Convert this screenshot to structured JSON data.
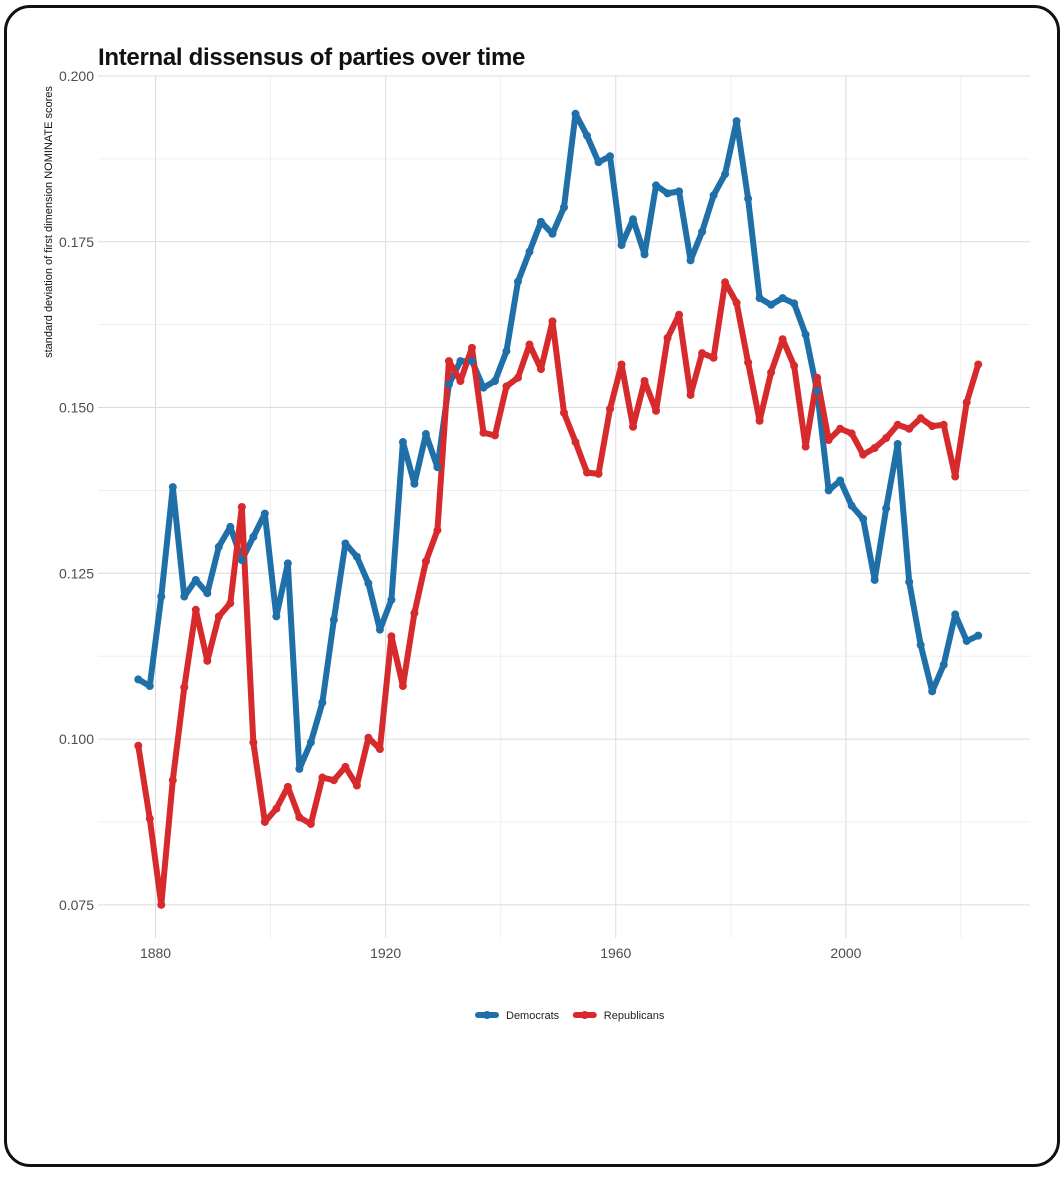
{
  "chart_data": {
    "type": "line",
    "title": "Internal dissensus of parties over time",
    "xlabel": "",
    "ylabel": "standard deviation of first dimension NOMINATE scores",
    "xlim": [
      1870,
      2032
    ],
    "ylim": [
      0.07,
      0.2
    ],
    "x_ticks": [
      1880,
      1920,
      1960,
      2000
    ],
    "y_ticks": [
      0.075,
      0.1,
      0.125,
      0.15,
      0.175,
      0.2
    ],
    "x_tick_labels": [
      "1880",
      "1920",
      "1960",
      "2000"
    ],
    "y_tick_labels": [
      "0.075",
      "0.100",
      "0.125",
      "0.150",
      "0.175",
      "0.200"
    ],
    "grid": true,
    "legend_position": "bottom",
    "x": [
      1877,
      1879,
      1881,
      1883,
      1885,
      1887,
      1889,
      1891,
      1893,
      1895,
      1897,
      1899,
      1901,
      1903,
      1905,
      1907,
      1909,
      1911,
      1913,
      1915,
      1917,
      1919,
      1921,
      1923,
      1925,
      1927,
      1929,
      1931,
      1933,
      1935,
      1937,
      1939,
      1941,
      1943,
      1945,
      1947,
      1949,
      1951,
      1953,
      1955,
      1957,
      1959,
      1961,
      1963,
      1965,
      1967,
      1969,
      1971,
      1973,
      1975,
      1977,
      1979,
      1981,
      1983,
      1985,
      1987,
      1989,
      1991,
      1993,
      1995,
      1997,
      1999,
      2001,
      2003,
      2005,
      2007,
      2009,
      2011,
      2013,
      2015,
      2017,
      2019,
      2021,
      2023
    ],
    "series": [
      {
        "name": "Democrats",
        "color": "#1f6fa8",
        "values": [
          0.109,
          0.108,
          0.1215,
          0.138,
          0.1215,
          0.124,
          0.122,
          0.129,
          0.132,
          0.127,
          0.1305,
          0.134,
          0.1185,
          0.1265,
          0.0955,
          0.0995,
          0.1055,
          0.118,
          0.1295,
          0.1275,
          0.1235,
          0.1165,
          0.121,
          0.1448,
          0.1385,
          0.146,
          0.141,
          0.1535,
          0.157,
          0.157,
          0.153,
          0.154,
          0.1585,
          0.169,
          0.1735,
          0.178,
          0.1762,
          0.1802,
          0.1943,
          0.191,
          0.187,
          0.1879,
          0.1745,
          0.1784,
          0.1731,
          0.1835,
          0.1823,
          0.1826,
          0.1722,
          0.1765,
          0.182,
          0.1852,
          0.1932,
          0.1815,
          0.1665,
          0.1655,
          0.1665,
          0.1657,
          0.161,
          0.1525,
          0.1375,
          0.139,
          0.1352,
          0.1332,
          0.124,
          0.1348,
          0.1445,
          0.1237,
          0.1142,
          0.1072,
          0.1112,
          0.1188,
          0.1148,
          0.1156
        ]
      },
      {
        "name": "Republicans",
        "color": "#d62a2c",
        "values": [
          0.099,
          0.088,
          0.075,
          0.0938,
          0.1078,
          0.1195,
          0.1118,
          0.1185,
          0.1205,
          0.135,
          0.0995,
          0.0875,
          0.0895,
          0.0928,
          0.0882,
          0.0872,
          0.0942,
          0.0938,
          0.0958,
          0.093,
          0.1002,
          0.0985,
          0.1155,
          0.108,
          0.119,
          0.1268,
          0.1315,
          0.157,
          0.154,
          0.159,
          0.1462,
          0.1458,
          0.1532,
          0.1545,
          0.1595,
          0.1558,
          0.163,
          0.1492,
          0.1448,
          0.1402,
          0.14,
          0.1498,
          0.1565,
          0.1471,
          0.154,
          0.1495,
          0.1605,
          0.164,
          0.1519,
          0.1582,
          0.1575,
          0.1689,
          0.1658,
          0.1568,
          0.148,
          0.1553,
          0.1603,
          0.1563,
          0.1441,
          0.1545,
          0.1451,
          0.1468,
          0.1461,
          0.1429,
          0.1439,
          0.1454,
          0.1474,
          0.1468,
          0.1484,
          0.1472,
          0.1474,
          0.1396,
          0.1508,
          0.1565
        ]
      }
    ]
  }
}
